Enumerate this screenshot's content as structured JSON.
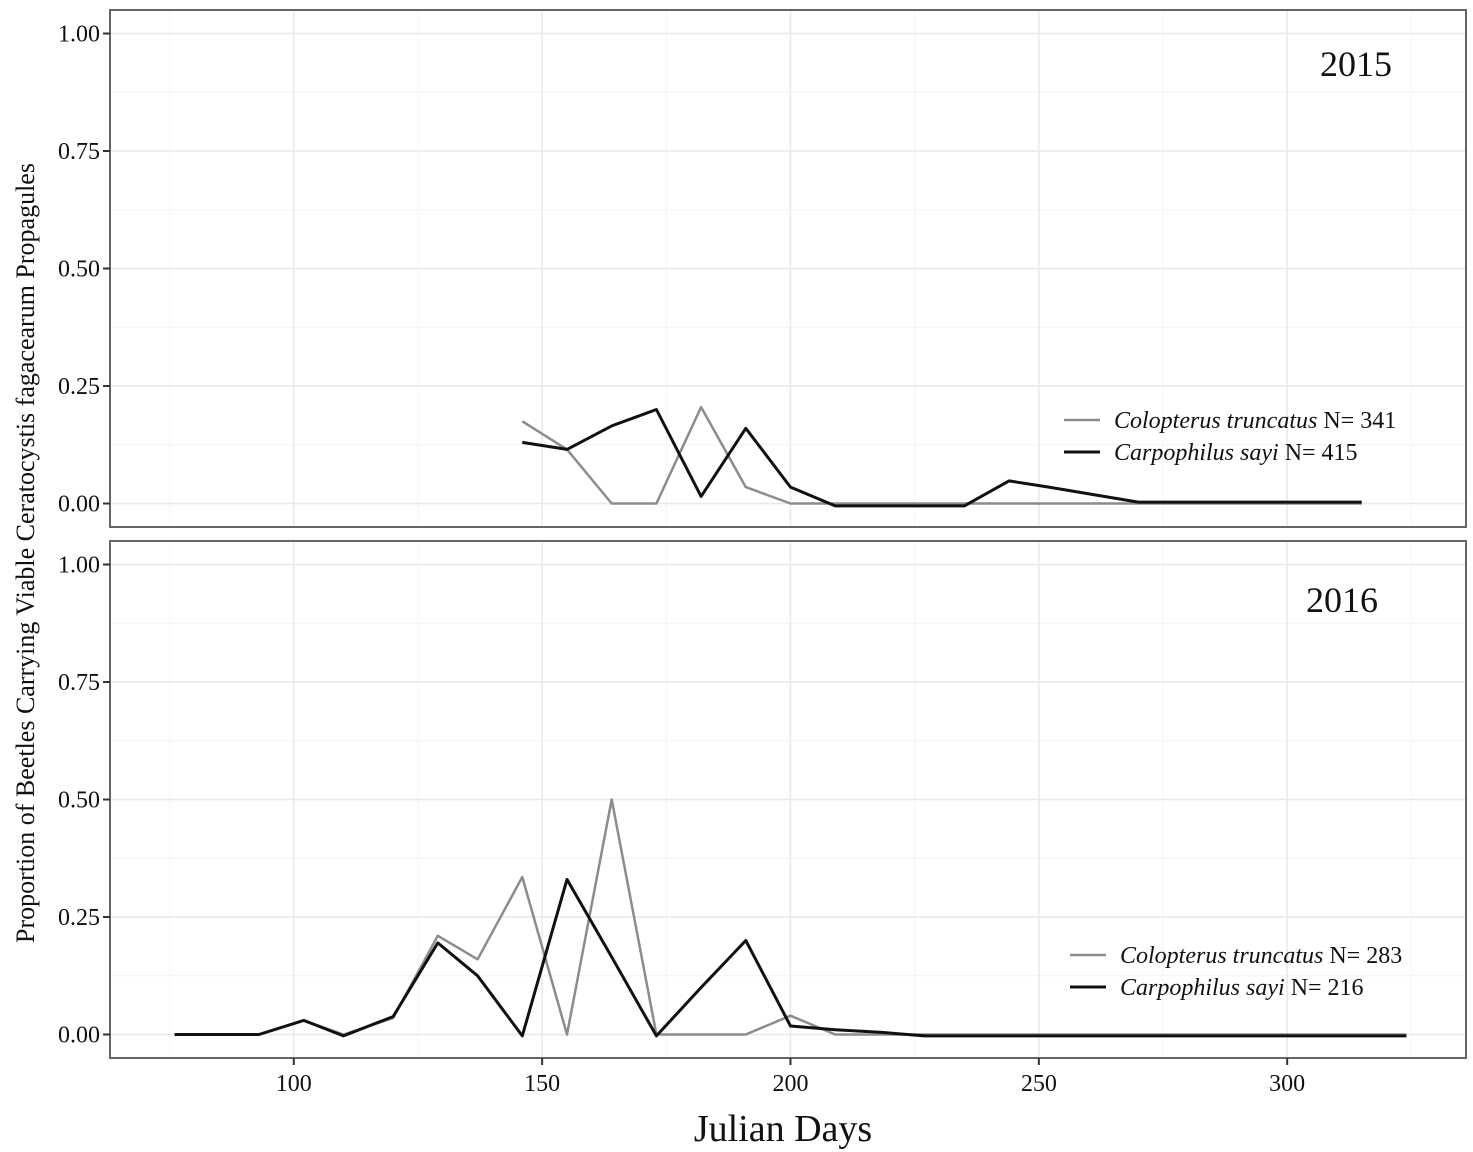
{
  "chart_data": {
    "type": "line",
    "xlabel": "Julian Days",
    "ylabel": "Proportion of Beetles Carrying Viable Ceratocystis  fagacearum Propagules",
    "xlim": [
      63,
      336
    ],
    "ylim": [
      -0.05,
      1.05
    ],
    "x_ticks": [
      100,
      150,
      200,
      250,
      300
    ],
    "y_ticks": [
      0.0,
      0.25,
      0.5,
      0.75,
      1.0
    ],
    "y_tick_labels": [
      "0.00",
      "0.25",
      "0.50",
      "0.75",
      "1.00"
    ],
    "x_tick_labels": [
      "100",
      "150",
      "200",
      "250",
      "300"
    ],
    "grid": true,
    "legend_position": "bottom-right",
    "colors": {
      "Colopterus truncatus": "#8c8c8c",
      "Carpophilus sayi": "#111111"
    },
    "panels": [
      {
        "label": "2015",
        "series": [
          {
            "name": "Colopterus truncatus",
            "legend_suffix": "N= 341",
            "x": [
              146,
              155,
              164,
              173,
              182,
              191,
              200,
              209,
              218,
              227,
              235,
              244,
              252,
              270,
              315
            ],
            "y": [
              0.175,
              0.115,
              0.0,
              0.0,
              0.205,
              0.035,
              0.0,
              0.0,
              0.0,
              0.0,
              0.0,
              0.0,
              0.0,
              0.0,
              0.0
            ]
          },
          {
            "name": "Carpophilus sayi",
            "legend_suffix": "N= 415",
            "x": [
              146,
              155,
              164,
              173,
              182,
              191,
              200,
              209,
              218,
              227,
              235,
              244,
              252,
              270,
              315
            ],
            "y": [
              0.13,
              0.115,
              0.165,
              0.2,
              0.015,
              0.16,
              0.035,
              -0.005,
              -0.005,
              -0.005,
              -0.005,
              0.048,
              0.035,
              0.003,
              0.003
            ]
          }
        ]
      },
      {
        "label": "2016",
        "series": [
          {
            "name": "Colopterus truncatus",
            "legend_suffix": "N= 283",
            "x": [
              76,
              93,
              102,
              110,
              120,
              129,
              137,
              146,
              155,
              164,
              173,
              182,
              191,
              200,
              209,
              218,
              227,
              324
            ],
            "y": [
              0.0,
              0.0,
              0.03,
              0.0,
              0.035,
              0.21,
              0.16,
              0.335,
              0.0,
              0.5,
              0.0,
              0.0,
              0.0,
              0.04,
              0.0,
              0.0,
              0.0,
              0.0
            ]
          },
          {
            "name": "Carpophilus sayi",
            "legend_suffix": "N= 216",
            "x": [
              76,
              93,
              102,
              110,
              120,
              129,
              137,
              146,
              155,
              164,
              173,
              182,
              191,
              200,
              209,
              218,
              227,
              324
            ],
            "y": [
              0.0,
              0.0,
              0.03,
              -0.003,
              0.038,
              0.195,
              0.125,
              -0.003,
              0.33,
              0.165,
              -0.003,
              0.1,
              0.2,
              0.018,
              0.01,
              0.005,
              -0.003,
              -0.003
            ]
          }
        ]
      }
    ]
  }
}
